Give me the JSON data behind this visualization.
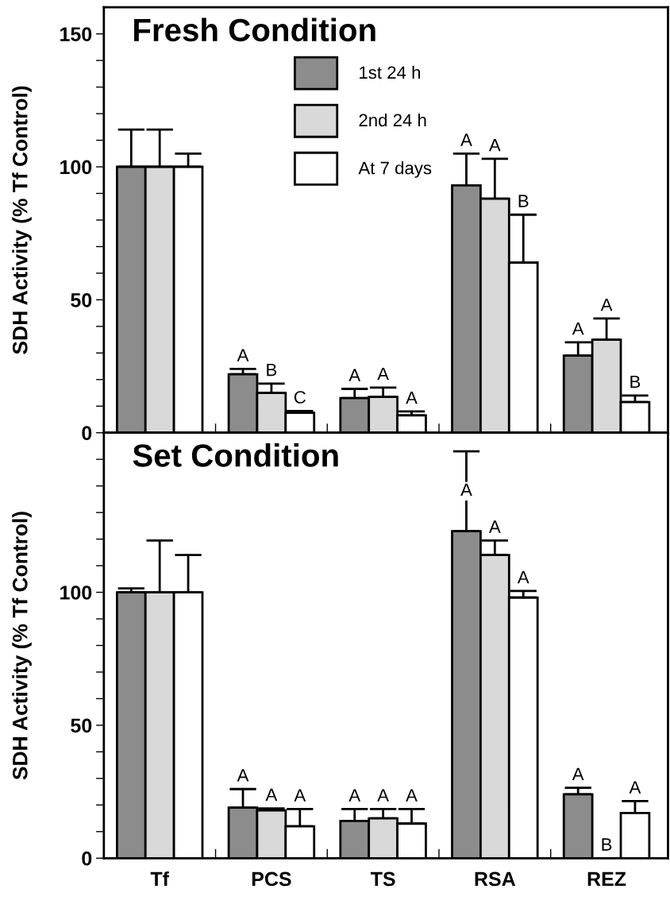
{
  "chart_data": [
    {
      "type": "bar",
      "title": "Fresh Condition",
      "ylabel": "SDH Activity (% Tf Control)",
      "categories": [
        null,
        null,
        null,
        null,
        null
      ],
      "series": [
        {
          "name": "1st 24 h",
          "color": "#8c8c8c",
          "values": [
            100,
            22,
            13,
            93,
            29
          ],
          "errors": [
            [
              100,
              114
            ],
            [
              22,
              24
            ],
            [
              13,
              16.5
            ],
            [
              93,
              105
            ],
            [
              29,
              34
            ]
          ],
          "value_labels": [
            null,
            "A",
            "A",
            "A",
            "A"
          ]
        },
        {
          "name": "2nd 24 h",
          "color": "#d9d9d9",
          "values": [
            100,
            15,
            13.5,
            88,
            35
          ],
          "errors": [
            [
              100,
              114
            ],
            [
              15,
              18.5
            ],
            [
              13.5,
              17
            ],
            [
              88,
              103
            ],
            [
              35,
              43
            ]
          ],
          "value_labels": [
            null,
            "B",
            "A",
            "A",
            "A"
          ]
        },
        {
          "name": "At 7 days",
          "color": "#ffffff",
          "values": [
            100,
            7.5,
            6.5,
            64,
            11.5
          ],
          "errors": [
            [
              100,
              105
            ],
            [
              7.5,
              8.2
            ],
            [
              6.5,
              8
            ],
            [
              64,
              82
            ],
            [
              11.5,
              14
            ]
          ],
          "value_labels": [
            null,
            "C",
            "A",
            "B",
            "B"
          ]
        }
      ],
      "ylim": [
        0,
        160
      ],
      "yticks": [
        0,
        {
          "value": 10,
          "label": null
        },
        {
          "value": 20,
          "label": null
        },
        {
          "value": 30,
          "label": null
        },
        {
          "value": 40,
          "label": null
        },
        50,
        {
          "value": 60,
          "label": null
        },
        {
          "value": 70,
          "label": null
        },
        {
          "value": 80,
          "label": null
        },
        {
          "value": 90,
          "label": null
        },
        100,
        {
          "value": 110,
          "label": null
        },
        {
          "value": 120,
          "label": null
        },
        {
          "value": 130,
          "label": null
        },
        {
          "value": 140,
          "label": null
        },
        150
      ],
      "legend": "top",
      "tick_labels": "y",
      "grid": false
    },
    {
      "type": "bar",
      "title": "Set Condition",
      "ylabel": "SDH Activity (% Tf Control)",
      "categories": [
        "Tf",
        "PCS",
        "TS",
        "RSA",
        "REZ"
      ],
      "series": [
        {
          "color": "#8c8c8c",
          "values": [
            100,
            19,
            14,
            123,
            24
          ],
          "errors": [
            [
              100,
              101.5
            ],
            [
              19,
              26
            ],
            [
              14,
              18.5
            ],
            [
              123,
              153
            ],
            [
              24,
              26.5
            ]
          ],
          "value_labels": [
            null,
            "A",
            "A",
            "A",
            "A"
          ]
        },
        {
          "color": "#d9d9d9",
          "values": [
            100,
            18,
            15,
            114,
            null
          ],
          "errors": [
            [
              100,
              119.5
            ],
            [
              18,
              18.7
            ],
            [
              15,
              18.5
            ],
            [
              114,
              119.5
            ],
            null
          ],
          "value_labels": [
            null,
            "A",
            "A",
            "A",
            "B"
          ]
        },
        {
          "color": "#ffffff",
          "values": [
            100,
            12,
            13,
            98,
            17
          ],
          "errors": [
            [
              100,
              114
            ],
            [
              12,
              18.5
            ],
            [
              13,
              18.5
            ],
            [
              98,
              100.5
            ],
            [
              17,
              21.5
            ]
          ],
          "value_labels": [
            null,
            "A",
            "A",
            "A",
            "A"
          ]
        }
      ],
      "ylim": [
        0,
        160
      ],
      "yticks": [
        0,
        {
          "value": 10,
          "label": null
        },
        {
          "value": 20,
          "label": null
        },
        {
          "value": 30,
          "label": null
        },
        {
          "value": 40,
          "label": null
        },
        50,
        {
          "value": 60,
          "label": null
        },
        {
          "value": 70,
          "label": null
        },
        {
          "value": 80,
          "label": null
        },
        {
          "value": 90,
          "label": null
        },
        100,
        {
          "value": 110,
          "label": null
        },
        {
          "value": 120,
          "label": null
        },
        {
          "value": 130,
          "label": null
        },
        {
          "value": 140,
          "label": null
        },
        {
          "value": 150,
          "label": null
        }
      ],
      "grid": false
    }
  ]
}
